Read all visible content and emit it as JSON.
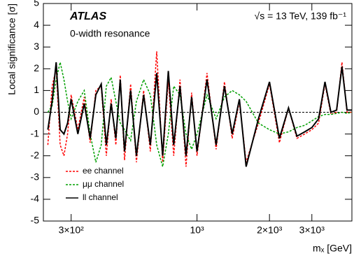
{
  "chart_data": {
    "type": "line",
    "annotations": [
      "ATLAS",
      "0-width resonance",
      "√s = 13 TeV, 139 fb⁻¹"
    ],
    "x_label": "mₓ [GeV]",
    "y_label": "Local significance [σ]",
    "x": [
      240,
      250,
      260,
      270,
      280,
      290,
      300,
      320,
      340,
      360,
      380,
      400,
      420,
      440,
      460,
      480,
      500,
      530,
      560,
      600,
      640,
      680,
      720,
      760,
      800,
      850,
      900,
      950,
      1000,
      1100,
      1200,
      1300,
      1400,
      1500,
      1600,
      1800,
      2000,
      2200,
      2400,
      2600,
      2800,
      3000,
      3200,
      3400,
      3600,
      3800,
      4000,
      4200,
      4400
    ],
    "series": [
      {
        "name": "ee channel",
        "color": "#ff0000",
        "dashed": true,
        "values": [
          -1.5,
          1.2,
          2,
          -1.5,
          -2,
          -1,
          0.8,
          -0.8,
          0.7,
          -1.4,
          1,
          1.2,
          -2,
          0.6,
          -1.5,
          1.7,
          -2.2,
          1.3,
          -2.3,
          1,
          -1.8,
          2.8,
          -2.3,
          1.5,
          -2,
          1.5,
          -2.5,
          0.9,
          -2,
          1.8,
          -1.7,
          1.4,
          -1.2,
          0.5,
          -2.3,
          -0.5,
          1.3,
          -1.4,
          0.2,
          -1.2,
          -1,
          -0.8,
          -0.5,
          1.3,
          -0.1,
          0,
          2.3,
          0,
          0
        ]
      },
      {
        "name": "μμ channel",
        "color": "#00a000",
        "dashed": true,
        "values": [
          0,
          0.3,
          1.5,
          2.3,
          1.5,
          0.5,
          -0.3,
          0.5,
          1,
          -1,
          -2.3,
          -1.5,
          1.2,
          1.6,
          0.5,
          -0.5,
          -0.8,
          -1.3,
          0.5,
          1.5,
          0.8,
          -1.5,
          -2.5,
          -1,
          1.2,
          0.8,
          -1,
          -1.7,
          -1,
          0.8,
          -0.3,
          0.7,
          1,
          0.8,
          0.5,
          -0.5,
          -0.8,
          -1,
          -0.9,
          -0.7,
          -0.6,
          -0.4,
          -0.2,
          -0.1,
          -0.1,
          -0.05,
          0,
          -0.05,
          0
        ]
      },
      {
        "name": "ll channel",
        "color": "#000000",
        "dashed": false,
        "values": [
          -0.8,
          0.5,
          2.3,
          -0.8,
          -1,
          -0.5,
          0.6,
          -1,
          0.4,
          -1.2,
          0.8,
          1.3,
          -1.5,
          0.4,
          -1.2,
          1.5,
          -1.8,
          1,
          -2,
          0.8,
          -1.5,
          1.8,
          -2,
          1.9,
          -1.5,
          1.2,
          -2,
          0.7,
          -1.8,
          1.5,
          -1.5,
          1.2,
          -1,
          0.6,
          -2.5,
          -0.3,
          1.4,
          -1.2,
          0.2,
          -1.1,
          -0.9,
          -0.7,
          -0.3,
          1.4,
          0,
          0.1,
          2.1,
          0.1,
          0.1
        ]
      }
    ],
    "x_log": true,
    "xlim": [
      230,
      4400
    ],
    "xticks": [
      {
        "value": 300,
        "label": "3×10²"
      },
      {
        "value": 1000,
        "label": "10³"
      },
      {
        "value": 2000,
        "label": "2×10³"
      },
      {
        "value": 3000,
        "label": "3×10³"
      }
    ],
    "ylim": [
      -5,
      5
    ],
    "yticks": [
      -5,
      -4,
      -3,
      -2,
      -1,
      0,
      1,
      2,
      3,
      4,
      5
    ],
    "legend": "lower-left"
  }
}
